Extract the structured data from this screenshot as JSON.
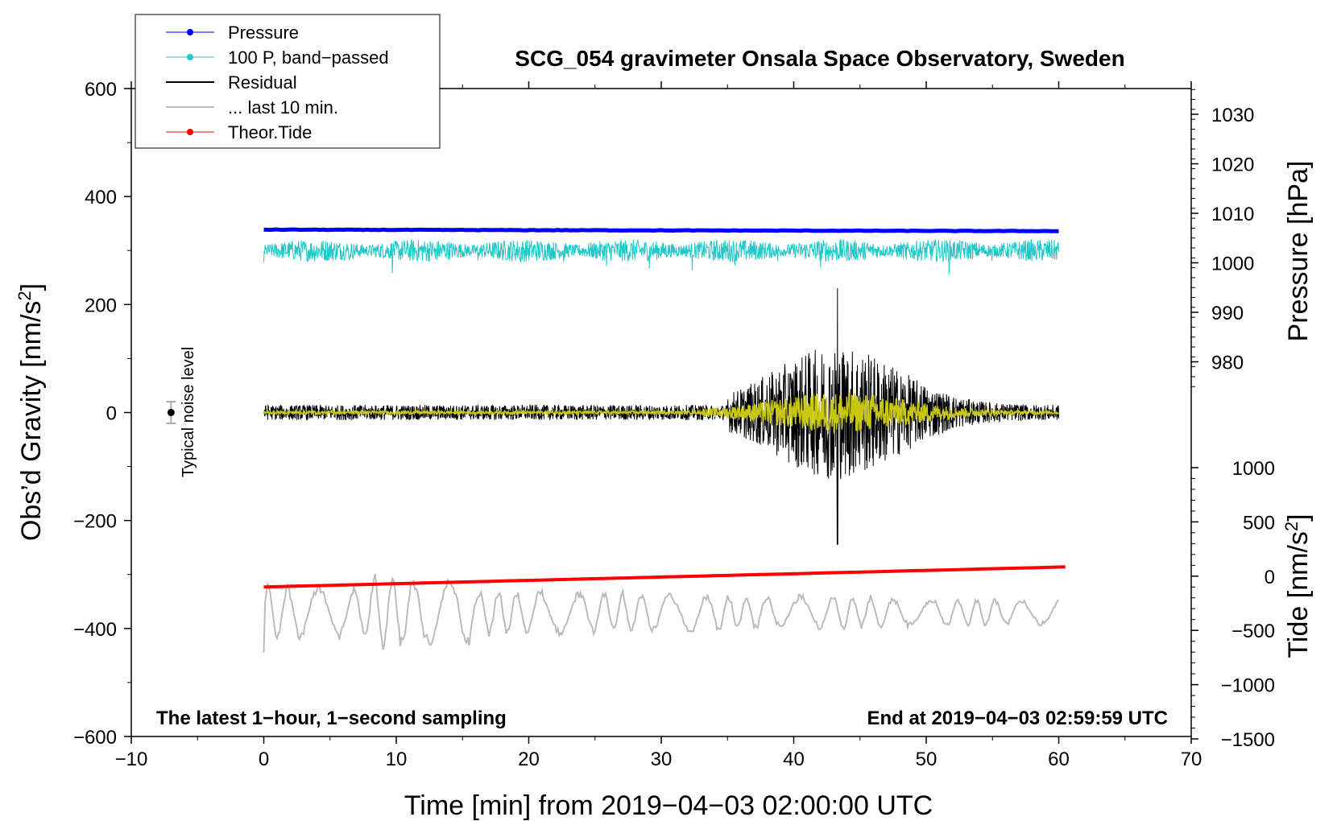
{
  "chart_data": {
    "type": "line",
    "title": "SCG_054 gravimeter Onsala Space Observatory, Sweden",
    "xlabel": "Time [min] from 2019−04−03 02:00:00 UTC",
    "ylabel_left": "Obs’d Gravity [nm/s",
    "ylabel_left_sup": "2",
    "ylabel_left_close": "]",
    "ylabel_right_pressure": "Pressure [hPa]",
    "ylabel_right_tide": "Tide [nm/s",
    "ylabel_right_tide_sup": "2",
    "ylabel_right_tide_close": "]",
    "xlim": [
      -10,
      70
    ],
    "ylim_left": [
      -600,
      600
    ],
    "pressure_range": [
      970,
      1035
    ],
    "tide_range": [
      -1500,
      1000
    ],
    "x_ticks": [
      "−10",
      "0",
      "10",
      "20",
      "30",
      "40",
      "50",
      "60",
      "70"
    ],
    "y_left_ticks": [
      "600",
      "400",
      "200",
      "0",
      "−200",
      "−400",
      "−600"
    ],
    "pressure_ticks": [
      "1030",
      "1020",
      "1010",
      "1000",
      "990",
      "980"
    ],
    "tide_ticks": [
      "1000",
      "500",
      "0",
      "−500",
      "−1000",
      "−1500"
    ],
    "annotation_left": "The latest 1−hour, 1−second sampling",
    "annotation_right": "End at 2019−04−03 02:59:59 UTC",
    "noise_label": "Typical noise level",
    "noise_bar": {
      "x": -7,
      "center": 0,
      "half_range": 20
    },
    "legend": [
      {
        "label": "Pressure",
        "color": "#0000ff",
        "marker": true
      },
      {
        "label": "100 P, band−passed",
        "color": "#20c8c8",
        "marker": true
      },
      {
        "label": "Residual",
        "color": "#000000",
        "marker": false
      },
      {
        "label": "... last 10 min.",
        "color": "#bbbbbb",
        "marker": false
      },
      {
        "label": "Theor.Tide",
        "color": "#ff0000",
        "marker": true
      }
    ],
    "series": [
      {
        "name": "Pressure",
        "axis": "pressure",
        "color": "#0000ff",
        "x_range": [
          0,
          60
        ],
        "values_start": 1006.7,
        "values_end": 1006.4
      },
      {
        "name": "100 P, band-passed",
        "axis": "gravity",
        "color": "#20c8c8",
        "x_range": [
          0,
          60
        ],
        "baseline": 305,
        "amplitude": 30
      },
      {
        "name": "Residual",
        "axis": "gravity",
        "color": "#000000",
        "x_range": [
          0,
          60
        ],
        "baseline": 0,
        "peak_x": 43.3,
        "peak_max": 230,
        "peak_min": -245
      },
      {
        "name": "Residual filtered",
        "axis": "gravity",
        "color": "#c8c814",
        "x_range": [
          0,
          60
        ],
        "baseline": 0,
        "amplitude": 35
      },
      {
        "name": "... last 10 min.",
        "axis": "gravity",
        "color": "#bbbbbb",
        "x_range": [
          0,
          60
        ],
        "baseline": -370,
        "range": [
          -475,
          -283
        ]
      },
      {
        "name": "Theor.Tide",
        "axis": "tide",
        "color": "#ff0000",
        "x_range": [
          0,
          60.5
        ],
        "values_start": -100,
        "values_end": 85
      }
    ]
  }
}
